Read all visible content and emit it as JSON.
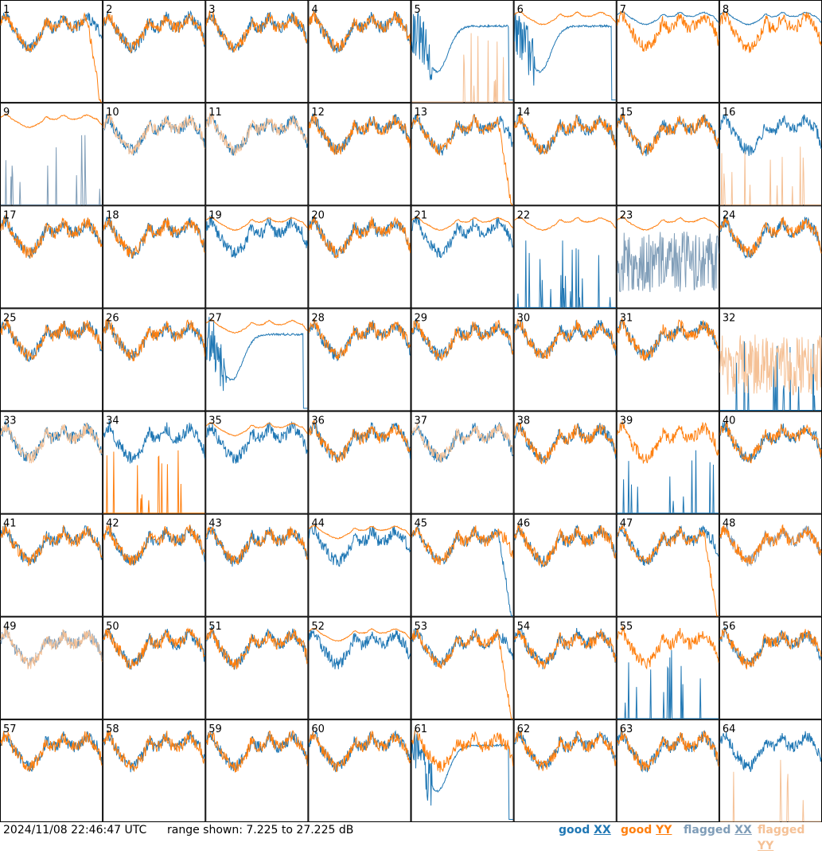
{
  "footer": {
    "timestamp": "2024/11/08 22:46:47 UTC",
    "range_text": "range shown: 7.225 to 27.225 dB"
  },
  "legend": [
    {
      "prefix": "good ",
      "suffix": "XX",
      "color": "#1f77b4"
    },
    {
      "prefix": "good ",
      "suffix": "YY",
      "color": "#ff7f0e"
    },
    {
      "prefix": "flagged ",
      "suffix": "XX",
      "color": "#7f9db8"
    },
    {
      "prefix": "flagged ",
      "suffix": "YY",
      "color": "#f5c196"
    }
  ],
  "colors": {
    "good_xx": "#1f77b4",
    "good_yy": "#ff7f0e",
    "flagged_xx": "#7f9db8",
    "flagged_yy": "#f5c196",
    "grid_line": "#000000"
  },
  "chart_data": {
    "type": "line",
    "description_of_layout": "small multiples 8x8",
    "ylim_db": [
      7.225,
      27.225
    ],
    "panels": [
      {
        "id": "1",
        "xx": "good",
        "yy": "good",
        "xx_shape": "normal",
        "yy_shape": "cliff"
      },
      {
        "id": "2",
        "xx": "good",
        "yy": "good",
        "xx_shape": "normal",
        "yy_shape": "normal"
      },
      {
        "id": "3",
        "xx": "good",
        "yy": "good",
        "xx_shape": "normal",
        "yy_shape": "normal"
      },
      {
        "id": "4",
        "xx": "good",
        "yy": "good",
        "xx_shape": "normal",
        "yy_shape": "normal"
      },
      {
        "id": "5",
        "xx": "good",
        "yy": "flagged",
        "xx_shape": "dip",
        "yy_shape": "spikes"
      },
      {
        "id": "6",
        "xx": "good",
        "yy": "good",
        "xx_shape": "dip",
        "yy_shape": "smooth"
      },
      {
        "id": "7",
        "xx": "good",
        "yy": "good",
        "xx_shape": "smooth",
        "yy_shape": "normal"
      },
      {
        "id": "8",
        "xx": "good",
        "yy": "good",
        "xx_shape": "smooth",
        "yy_shape": "normal"
      },
      {
        "id": "9",
        "xx": "flagged",
        "yy": "good",
        "xx_shape": "spikes",
        "yy_shape": "smooth"
      },
      {
        "id": "10",
        "xx": "good",
        "yy": "flagged",
        "xx_shape": "normal",
        "yy_shape": "normal"
      },
      {
        "id": "11",
        "xx": "good",
        "yy": "flagged",
        "xx_shape": "normal",
        "yy_shape": "normal"
      },
      {
        "id": "12",
        "xx": "good",
        "yy": "good",
        "xx_shape": "normal",
        "yy_shape": "normal"
      },
      {
        "id": "13",
        "xx": "good",
        "yy": "good",
        "xx_shape": "normal",
        "yy_shape": "cliff"
      },
      {
        "id": "14",
        "xx": "good",
        "yy": "good",
        "xx_shape": "normal",
        "yy_shape": "normal"
      },
      {
        "id": "15",
        "xx": "good",
        "yy": "good",
        "xx_shape": "normal",
        "yy_shape": "normal"
      },
      {
        "id": "16",
        "xx": "good",
        "yy": "flagged",
        "xx_shape": "normal",
        "yy_shape": "spikes"
      },
      {
        "id": "17",
        "xx": "good",
        "yy": "good",
        "xx_shape": "normal",
        "yy_shape": "normal"
      },
      {
        "id": "18",
        "xx": "good",
        "yy": "good",
        "xx_shape": "normal",
        "yy_shape": "normal"
      },
      {
        "id": "19",
        "xx": "good",
        "yy": "good",
        "xx_shape": "normal",
        "yy_shape": "smooth"
      },
      {
        "id": "20",
        "xx": "good",
        "yy": "good",
        "xx_shape": "normal",
        "yy_shape": "normal"
      },
      {
        "id": "21",
        "xx": "good",
        "yy": "good",
        "xx_shape": "normal",
        "yy_shape": "smooth"
      },
      {
        "id": "22",
        "xx": "good",
        "yy": "good",
        "xx_shape": "spikes",
        "yy_shape": "smooth"
      },
      {
        "id": "23",
        "xx": "flagged",
        "yy": "good",
        "xx_shape": "noisy",
        "yy_shape": "smooth"
      },
      {
        "id": "24",
        "xx": "good",
        "yy": "good",
        "xx_shape": "normal",
        "yy_shape": "normal"
      },
      {
        "id": "25",
        "xx": "good",
        "yy": "good",
        "xx_shape": "normal",
        "yy_shape": "normal"
      },
      {
        "id": "26",
        "xx": "good",
        "yy": "good",
        "xx_shape": "normal",
        "yy_shape": "normal"
      },
      {
        "id": "27",
        "xx": "good",
        "yy": "good",
        "xx_shape": "dip",
        "yy_shape": "smooth"
      },
      {
        "id": "28",
        "xx": "good",
        "yy": "good",
        "xx_shape": "normal",
        "yy_shape": "normal"
      },
      {
        "id": "29",
        "xx": "good",
        "yy": "good",
        "xx_shape": "normal",
        "yy_shape": "normal"
      },
      {
        "id": "30",
        "xx": "good",
        "yy": "good",
        "xx_shape": "normal",
        "yy_shape": "normal"
      },
      {
        "id": "31",
        "xx": "good",
        "yy": "good",
        "xx_shape": "normal",
        "yy_shape": "normal"
      },
      {
        "id": "32",
        "xx": "good",
        "yy": "flagged",
        "xx_shape": "spikes",
        "yy_shape": "noisy"
      },
      {
        "id": "33",
        "xx": "good",
        "yy": "flagged",
        "xx_shape": "normal",
        "yy_shape": "normal"
      },
      {
        "id": "34",
        "xx": "good",
        "yy": "good",
        "xx_shape": "normal",
        "yy_shape": "spikes"
      },
      {
        "id": "35",
        "xx": "good",
        "yy": "good",
        "xx_shape": "normal",
        "yy_shape": "smooth"
      },
      {
        "id": "36",
        "xx": "good",
        "yy": "good",
        "xx_shape": "normal",
        "yy_shape": "normal"
      },
      {
        "id": "37",
        "xx": "good",
        "yy": "flagged",
        "xx_shape": "normal",
        "yy_shape": "normal"
      },
      {
        "id": "38",
        "xx": "good",
        "yy": "good",
        "xx_shape": "normal",
        "yy_shape": "normal"
      },
      {
        "id": "39",
        "xx": "good",
        "yy": "good",
        "xx_shape": "spikes",
        "yy_shape": "normal"
      },
      {
        "id": "40",
        "xx": "good",
        "yy": "good",
        "xx_shape": "normal",
        "yy_shape": "normal"
      },
      {
        "id": "41",
        "xx": "good",
        "yy": "good",
        "xx_shape": "normal",
        "yy_shape": "normal"
      },
      {
        "id": "42",
        "xx": "good",
        "yy": "good",
        "xx_shape": "normal",
        "yy_shape": "normal"
      },
      {
        "id": "43",
        "xx": "good",
        "yy": "good",
        "xx_shape": "normal",
        "yy_shape": "normal"
      },
      {
        "id": "44",
        "xx": "good",
        "yy": "good",
        "xx_shape": "normal",
        "yy_shape": "smooth"
      },
      {
        "id": "45",
        "xx": "good",
        "yy": "good",
        "xx_shape": "cliff",
        "yy_shape": "normal"
      },
      {
        "id": "46",
        "xx": "good",
        "yy": "good",
        "xx_shape": "normal",
        "yy_shape": "normal"
      },
      {
        "id": "47",
        "xx": "good",
        "yy": "good",
        "xx_shape": "normal",
        "yy_shape": "cliff"
      },
      {
        "id": "48",
        "xx": "flagged",
        "yy": "good",
        "xx_shape": "normal",
        "yy_shape": "normal"
      },
      {
        "id": "49",
        "xx": "flagged",
        "yy": "flagged",
        "xx_shape": "normal",
        "yy_shape": "normal"
      },
      {
        "id": "50",
        "xx": "good",
        "yy": "good",
        "xx_shape": "normal",
        "yy_shape": "normal"
      },
      {
        "id": "51",
        "xx": "good",
        "yy": "good",
        "xx_shape": "normal",
        "yy_shape": "normal"
      },
      {
        "id": "52",
        "xx": "good",
        "yy": "good",
        "xx_shape": "normal",
        "yy_shape": "smooth"
      },
      {
        "id": "53",
        "xx": "good",
        "yy": "good",
        "xx_shape": "normal",
        "yy_shape": "cliff"
      },
      {
        "id": "54",
        "xx": "good",
        "yy": "good",
        "xx_shape": "normal",
        "yy_shape": "normal"
      },
      {
        "id": "55",
        "xx": "good",
        "yy": "good",
        "xx_shape": "spikes",
        "yy_shape": "normal"
      },
      {
        "id": "56",
        "xx": "good",
        "yy": "good",
        "xx_shape": "normal",
        "yy_shape": "normal"
      },
      {
        "id": "57",
        "xx": "good",
        "yy": "good",
        "xx_shape": "normal",
        "yy_shape": "normal"
      },
      {
        "id": "58",
        "xx": "good",
        "yy": "good",
        "xx_shape": "normal",
        "yy_shape": "normal"
      },
      {
        "id": "59",
        "xx": "good",
        "yy": "good",
        "xx_shape": "normal",
        "yy_shape": "normal"
      },
      {
        "id": "60",
        "xx": "good",
        "yy": "good",
        "xx_shape": "normal",
        "yy_shape": "normal"
      },
      {
        "id": "61",
        "xx": "good",
        "yy": "good",
        "xx_shape": "dip",
        "yy_shape": "normal"
      },
      {
        "id": "62",
        "xx": "good",
        "yy": "good",
        "xx_shape": "normal",
        "yy_shape": "normal"
      },
      {
        "id": "63",
        "xx": "good",
        "yy": "good",
        "xx_shape": "normal",
        "yy_shape": "normal"
      },
      {
        "id": "64",
        "xx": "good",
        "yy": "flagged",
        "xx_shape": "normal",
        "yy_shape": "spikes"
      }
    ]
  }
}
